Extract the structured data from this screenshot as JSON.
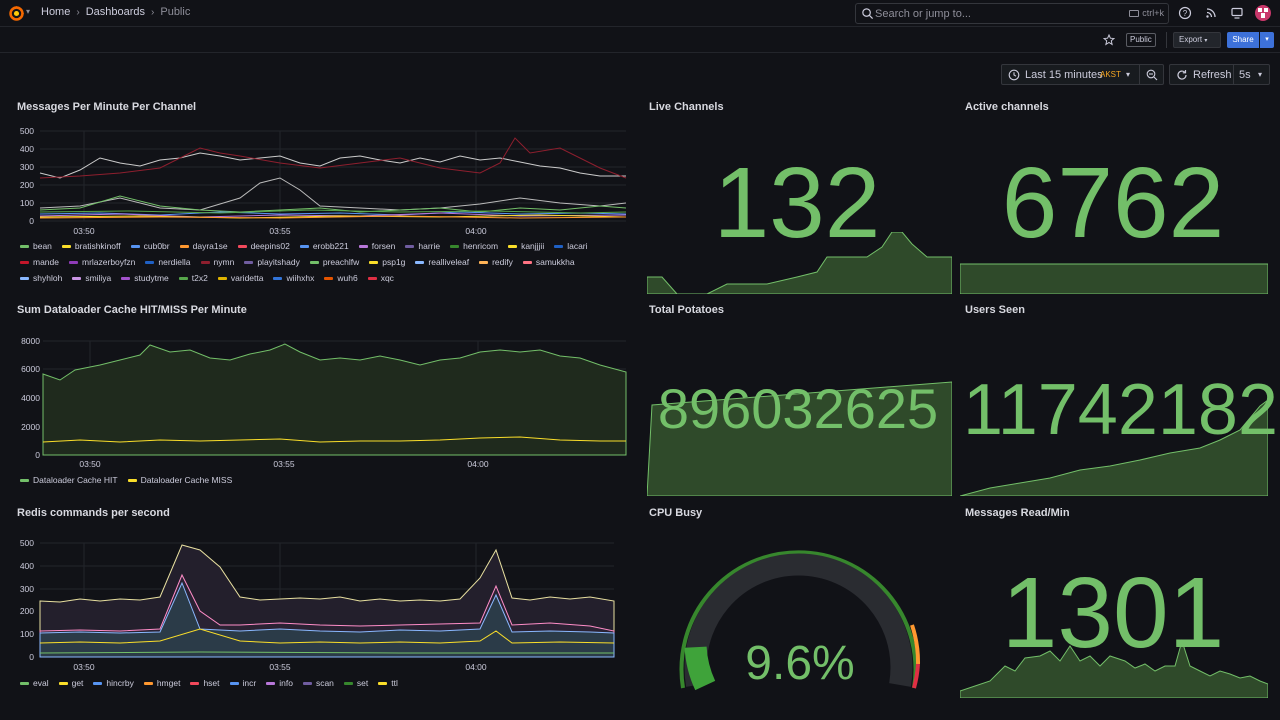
{
  "nav": {
    "breadcrumbs": [
      "Home",
      "Dashboards",
      "Public"
    ],
    "search_placeholder": "Search or jump to...",
    "search_shortcut": "ctrl+k"
  },
  "toolbar": {
    "public_tag": "Public",
    "export_label": "Export",
    "share_label": "Share",
    "time_range": "Last 15 minutes",
    "timezone": "AKST",
    "refresh_label": "Refresh",
    "refresh_interval": "5s"
  },
  "colors": {
    "stat_green": "#73bf69",
    "accent_blue": "#3d71d9",
    "timezone_orange": "#f5a623"
  },
  "panels": {
    "messages_per_minute": {
      "title": "Messages Per Minute Per Channel",
      "y_ticks": [
        "500",
        "400",
        "300",
        "200",
        "100",
        "0"
      ],
      "x_ticks": [
        "03:50",
        "03:55",
        "04:00"
      ],
      "legend": [
        {
          "name": "bean",
          "color": "#73bf69"
        },
        {
          "name": "bratishkinoff",
          "color": "#fade2a"
        },
        {
          "name": "cub0br",
          "color": "#5794f2"
        },
        {
          "name": "dayra1se",
          "color": "#ff9830"
        },
        {
          "name": "deepins02",
          "color": "#f2495c"
        },
        {
          "name": "erobb221",
          "color": "#5794f2"
        },
        {
          "name": "forsen",
          "color": "#b877d9"
        },
        {
          "name": "harrie",
          "color": "#705da0"
        },
        {
          "name": "henricom",
          "color": "#37872d"
        },
        {
          "name": "kanjjjii",
          "color": "#fade2a"
        },
        {
          "name": "lacari",
          "color": "#1f60c4"
        },
        {
          "name": "mande",
          "color": "#c4162a"
        },
        {
          "name": "mrlazerboyfzn",
          "color": "#8f3bb8"
        },
        {
          "name": "nerdiella",
          "color": "#1f60c4"
        },
        {
          "name": "nymn",
          "color": "#8e1f2e"
        },
        {
          "name": "playitshady",
          "color": "#705da0"
        },
        {
          "name": "preachlfw",
          "color": "#73bf69"
        },
        {
          "name": "psp1g",
          "color": "#fade2a"
        },
        {
          "name": "realliveleaf",
          "color": "#8ab8ff"
        },
        {
          "name": "redify",
          "color": "#ffb357"
        },
        {
          "name": "samukkha",
          "color": "#ff7383"
        },
        {
          "name": "shyhloh",
          "color": "#8ab8ff"
        },
        {
          "name": "smiliya",
          "color": "#ca95e5"
        },
        {
          "name": "studytme",
          "color": "#a352cc"
        },
        {
          "name": "t2x2",
          "color": "#56a64b"
        },
        {
          "name": "varidetta",
          "color": "#e0b400"
        },
        {
          "name": "wiihxhx",
          "color": "#3274d9"
        },
        {
          "name": "wuh6",
          "color": "#e55400"
        },
        {
          "name": "xqc",
          "color": "#e02f44"
        }
      ]
    },
    "live_channels": {
      "title": "Live Channels",
      "value": "132"
    },
    "active_channels": {
      "title": "Active channels",
      "value": "6762"
    },
    "dataloader_cache": {
      "title": "Sum Dataloader Cache HIT/MISS Per Minute",
      "y_ticks": [
        "8000",
        "6000",
        "4000",
        "2000",
        "0"
      ],
      "x_ticks": [
        "03:50",
        "03:55",
        "04:00"
      ],
      "legend": [
        {
          "name": "Dataloader Cache HIT",
          "color": "#73bf69"
        },
        {
          "name": "Dataloader Cache MISS",
          "color": "#fade2a"
        }
      ]
    },
    "total_potatoes": {
      "title": "Total Potatoes",
      "value": "896032625"
    },
    "users_seen": {
      "title": "Users Seen",
      "value": "11742182"
    },
    "redis_commands": {
      "title": "Redis commands per second",
      "y_ticks": [
        "500",
        "400",
        "300",
        "200",
        "100",
        "0"
      ],
      "x_ticks": [
        "03:50",
        "03:55",
        "04:00"
      ],
      "legend": [
        {
          "name": "eval",
          "color": "#73bf69"
        },
        {
          "name": "get",
          "color": "#fade2a"
        },
        {
          "name": "hincrby",
          "color": "#5794f2"
        },
        {
          "name": "hmget",
          "color": "#ff9830"
        },
        {
          "name": "hset",
          "color": "#f2495c"
        },
        {
          "name": "incr",
          "color": "#5794f2"
        },
        {
          "name": "info",
          "color": "#b877d9"
        },
        {
          "name": "scan",
          "color": "#705da0"
        },
        {
          "name": "set",
          "color": "#37872d"
        },
        {
          "name": "ttl",
          "color": "#fade2a"
        }
      ]
    },
    "cpu_busy": {
      "title": "CPU Busy",
      "value": "9.6%",
      "percent": 9.6
    },
    "messages_read": {
      "title": "Messages Read/Min",
      "value": "1301"
    }
  }
}
